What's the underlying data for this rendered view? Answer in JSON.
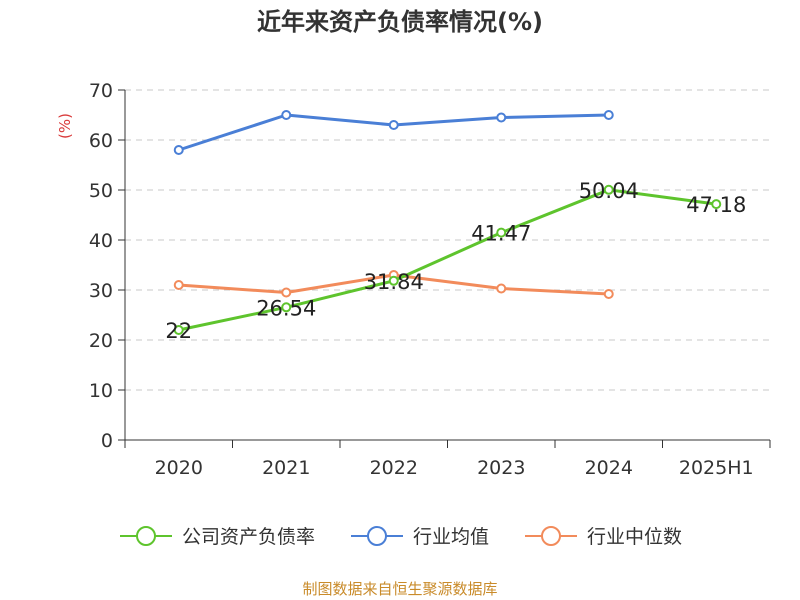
{
  "chart_data": {
    "type": "line",
    "title": "近年来资产负债率情况(%)",
    "ylabel": "(%)",
    "xlabel": "",
    "categories": [
      "2020",
      "2021",
      "2022",
      "2023",
      "2024",
      "2025H1"
    ],
    "ylim": [
      0,
      70
    ],
    "yticks": [
      0,
      10,
      20,
      30,
      40,
      50,
      60,
      70
    ],
    "grid": "horizontal-dashed",
    "legend_position": "bottom",
    "series": [
      {
        "name": "公司资产负债率",
        "color": "#5ec42d",
        "values": [
          22,
          26.54,
          31.84,
          41.47,
          50.04,
          47.18
        ],
        "labels": [
          "22",
          "26.54",
          "31.84",
          "41.47",
          "50.04",
          "47.18"
        ]
      },
      {
        "name": "行业均值",
        "color": "#4a7fd6",
        "values": [
          58,
          65,
          63,
          64.5,
          65,
          null
        ]
      },
      {
        "name": "行业中位数",
        "color": "#f28b5b",
        "values": [
          31,
          29.5,
          33,
          30.3,
          29.2,
          null
        ]
      }
    ]
  },
  "source_note": "制图数据来自恒生聚源数据库"
}
